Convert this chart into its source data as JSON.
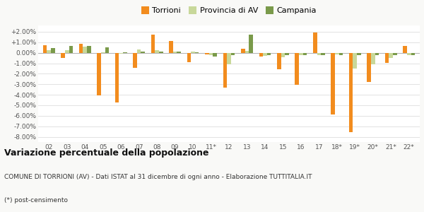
{
  "years": [
    "02",
    "03",
    "04",
    "05",
    "06",
    "07",
    "08",
    "09",
    "10",
    "11*",
    "12",
    "13",
    "14",
    "15",
    "16",
    "17",
    "18*",
    "19*",
    "20*",
    "21*",
    "22*"
  ],
  "torrioni": [
    0.74,
    -0.5,
    0.82,
    -4.05,
    -4.72,
    -1.42,
    1.75,
    1.1,
    -0.87,
    -0.14,
    -3.3,
    0.37,
    -0.33,
    -1.55,
    -3.05,
    1.93,
    -5.85,
    -7.55,
    -2.8,
    -0.95,
    0.65
  ],
  "provincia_av": [
    0.25,
    0.27,
    0.6,
    0.05,
    -0.07,
    0.3,
    0.27,
    0.09,
    0.09,
    -0.2,
    -1.1,
    0.18,
    -0.27,
    -0.4,
    -0.25,
    -0.25,
    -0.15,
    -1.5,
    -1.1,
    -0.5,
    -0.2
  ],
  "campania": [
    0.45,
    0.65,
    0.65,
    0.5,
    0.05,
    0.1,
    0.08,
    0.08,
    0.05,
    -0.35,
    -0.25,
    1.75,
    -0.2,
    -0.2,
    -0.2,
    -0.2,
    -0.2,
    -0.25,
    -0.25,
    -0.25,
    -0.2
  ],
  "torrioni_color": "#f28c1e",
  "provincia_av_color": "#c8d89a",
  "campania_color": "#7a9a4a",
  "bg_color": "#f9f9f7",
  "plot_bg_color": "#ffffff",
  "ylim": [
    -8.5,
    2.6
  ],
  "yticks": [
    2.0,
    1.0,
    0.0,
    -1.0,
    -2.0,
    -3.0,
    -4.0,
    -5.0,
    -6.0,
    -7.0,
    -8.0
  ],
  "title": "Variazione percentuale della popolazione",
  "subtitle1": "COMUNE DI TORRIONI (AV) - Dati ISTAT al 31 dicembre di ogni anno - Elaborazione TUTTITALIA.IT",
  "subtitle2": "(*) post-censimento",
  "legend_labels": [
    "Torrioni",
    "Provincia di AV",
    "Campania"
  ]
}
